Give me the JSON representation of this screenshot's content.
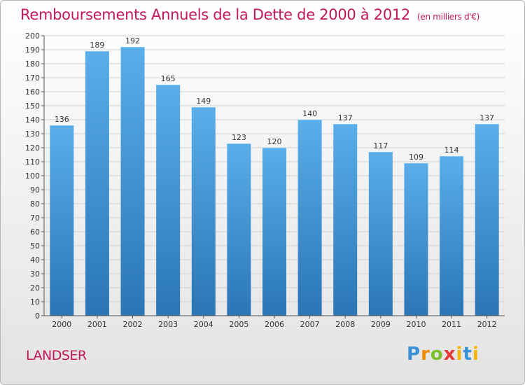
{
  "title": "Remboursements Annuels de la Dette de 2000 à 2012",
  "subtitle": "(en milliers d'€)",
  "commune": "LANDSER",
  "logo": {
    "text": "Proxiti",
    "colors": [
      "#3a8fd6",
      "#f08a00",
      "#7cbf2a",
      "#e53935",
      "#f4b400",
      "#3a8fd6"
    ]
  },
  "colors": {
    "title": "#c2185b",
    "bar_top": "#5aaeea",
    "bar_bottom": "#2a75b6",
    "grid": "#cfcfcf"
  },
  "chart_data": {
    "type": "bar",
    "title": "Remboursements Annuels de la Dette de 2000 à 2012",
    "subtitle": "(en milliers d'€)",
    "xlabel": "",
    "ylabel": "",
    "categories": [
      "2000",
      "2001",
      "2002",
      "2003",
      "2004",
      "2005",
      "2006",
      "2007",
      "2008",
      "2009",
      "2010",
      "2011",
      "2012"
    ],
    "values": [
      136,
      189,
      192,
      165,
      149,
      123,
      120,
      140,
      137,
      117,
      109,
      114,
      137
    ],
    "data_labels": [
      "136",
      "189",
      "192",
      "165",
      "149",
      "123",
      "120",
      "140",
      "137",
      "117",
      "109",
      "114",
      "137"
    ],
    "ylim": [
      0,
      200
    ],
    "ytick_step": 10,
    "grid": true
  }
}
